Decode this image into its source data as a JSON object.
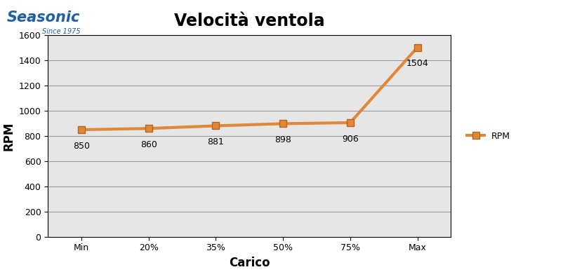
{
  "chart_data": {
    "type": "line",
    "title": "Velocità ventola",
    "x_label": "Carico",
    "y_label": "RPM",
    "annotations": [
      "Seasonic",
      "Since 1975"
    ],
    "categories": [
      "Min",
      "20%",
      "35%",
      "50%",
      "75%",
      "Max"
    ],
    "series": [
      {
        "name": "RPM",
        "color": "#e0873a",
        "marker": "square",
        "line_style": "solid",
        "values": [
          850,
          860,
          881,
          898,
          906,
          1504
        ]
      }
    ],
    "ylim": [
      0,
      1600
    ],
    "yticks": [
      0,
      200,
      400,
      600,
      800,
      1000,
      1200,
      1400,
      1600
    ],
    "grid": true,
    "legend": "right",
    "data_labels": true
  }
}
